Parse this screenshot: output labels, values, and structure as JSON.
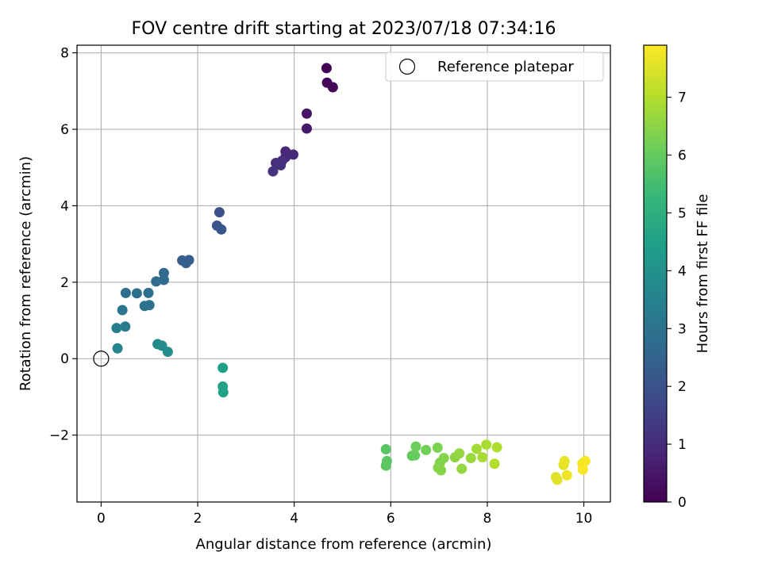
{
  "chart_data": {
    "type": "scatter",
    "title": "FOV centre drift starting at 2023/07/18 07:34:16",
    "xlabel": "Angular distance from reference (arcmin)",
    "ylabel": "Rotation from reference (arcmin)",
    "xlim": [
      -0.5,
      10.55
    ],
    "ylim": [
      -3.75,
      8.2
    ],
    "x_ticks": [
      0,
      2,
      4,
      6,
      8,
      10
    ],
    "y_ticks": [
      -2,
      0,
      2,
      4,
      6,
      8
    ],
    "grid": true,
    "legend": {
      "placement": "top-right",
      "entries": [
        {
          "label": "Reference platepar",
          "marker": "open-circle"
        }
      ]
    },
    "reference_point": {
      "x": 0,
      "y": 0
    },
    "colorbar": {
      "label": "Hours from first FF file",
      "colormap": "viridis",
      "range": [
        0,
        7.9
      ],
      "ticks": [
        0,
        1,
        2,
        3,
        4,
        5,
        6,
        7
      ]
    },
    "points": [
      {
        "x": 4.67,
        "y": 7.6,
        "t": 0.05
      },
      {
        "x": 4.68,
        "y": 7.22,
        "t": 0.12
      },
      {
        "x": 4.8,
        "y": 7.1,
        "t": 0.18
      },
      {
        "x": 4.26,
        "y": 6.41,
        "t": 0.45
      },
      {
        "x": 4.26,
        "y": 6.02,
        "t": 0.55
      },
      {
        "x": 3.82,
        "y": 5.42,
        "t": 0.85
      },
      {
        "x": 3.98,
        "y": 5.34,
        "t": 0.9
      },
      {
        "x": 3.82,
        "y": 5.27,
        "t": 0.95
      },
      {
        "x": 3.75,
        "y": 5.18,
        "t": 1.0
      },
      {
        "x": 3.62,
        "y": 5.12,
        "t": 1.05
      },
      {
        "x": 3.72,
        "y": 5.06,
        "t": 1.1
      },
      {
        "x": 3.56,
        "y": 4.9,
        "t": 1.15
      },
      {
        "x": 2.45,
        "y": 3.83,
        "t": 1.95
      },
      {
        "x": 2.4,
        "y": 3.48,
        "t": 2.05
      },
      {
        "x": 2.49,
        "y": 3.38,
        "t": 2.1
      },
      {
        "x": 1.68,
        "y": 2.57,
        "t": 2.3
      },
      {
        "x": 1.82,
        "y": 2.58,
        "t": 2.33
      },
      {
        "x": 1.76,
        "y": 2.5,
        "t": 2.36
      },
      {
        "x": 1.3,
        "y": 2.24,
        "t": 2.7
      },
      {
        "x": 1.3,
        "y": 2.06,
        "t": 2.75
      },
      {
        "x": 1.14,
        "y": 2.02,
        "t": 2.78
      },
      {
        "x": 0.51,
        "y": 1.72,
        "t": 2.85
      },
      {
        "x": 0.74,
        "y": 1.71,
        "t": 2.88
      },
      {
        "x": 0.98,
        "y": 1.72,
        "t": 2.9
      },
      {
        "x": 0.9,
        "y": 1.38,
        "t": 2.95
      },
      {
        "x": 1.0,
        "y": 1.4,
        "t": 2.98
      },
      {
        "x": 0.44,
        "y": 1.27,
        "t": 3.1
      },
      {
        "x": 0.5,
        "y": 0.84,
        "t": 3.3
      },
      {
        "x": 0.32,
        "y": 0.8,
        "t": 3.4
      },
      {
        "x": 0.34,
        "y": 0.27,
        "t": 3.6
      },
      {
        "x": 1.17,
        "y": 0.38,
        "t": 3.8
      },
      {
        "x": 1.26,
        "y": 0.34,
        "t": 3.85
      },
      {
        "x": 1.38,
        "y": 0.18,
        "t": 3.9
      },
      {
        "x": 2.52,
        "y": -0.24,
        "t": 4.45
      },
      {
        "x": 2.52,
        "y": -0.73,
        "t": 4.5
      },
      {
        "x": 2.53,
        "y": -0.88,
        "t": 4.55
      },
      {
        "x": 5.9,
        "y": -2.37,
        "t": 5.8
      },
      {
        "x": 5.92,
        "y": -2.68,
        "t": 5.85
      },
      {
        "x": 5.9,
        "y": -2.8,
        "t": 5.88
      },
      {
        "x": 6.44,
        "y": -2.54,
        "t": 6.0
      },
      {
        "x": 6.5,
        "y": -2.53,
        "t": 6.05
      },
      {
        "x": 6.52,
        "y": -2.3,
        "t": 6.1
      },
      {
        "x": 6.73,
        "y": -2.39,
        "t": 6.2
      },
      {
        "x": 6.97,
        "y": -2.33,
        "t": 6.3
      },
      {
        "x": 7.02,
        "y": -2.72,
        "t": 6.35
      },
      {
        "x": 7.1,
        "y": -2.6,
        "t": 6.4
      },
      {
        "x": 6.98,
        "y": -2.85,
        "t": 6.42
      },
      {
        "x": 7.04,
        "y": -2.92,
        "t": 6.45
      },
      {
        "x": 7.33,
        "y": -2.58,
        "t": 6.55
      },
      {
        "x": 7.42,
        "y": -2.48,
        "t": 6.6
      },
      {
        "x": 7.47,
        "y": -2.88,
        "t": 6.62
      },
      {
        "x": 7.66,
        "y": -2.6,
        "t": 6.7
      },
      {
        "x": 7.78,
        "y": -2.36,
        "t": 6.8
      },
      {
        "x": 7.9,
        "y": -2.58,
        "t": 6.85
      },
      {
        "x": 7.98,
        "y": -2.25,
        "t": 6.9
      },
      {
        "x": 8.2,
        "y": -2.32,
        "t": 6.95
      },
      {
        "x": 8.15,
        "y": -2.75,
        "t": 7.0
      },
      {
        "x": 9.42,
        "y": -3.1,
        "t": 7.5
      },
      {
        "x": 9.45,
        "y": -3.17,
        "t": 7.55
      },
      {
        "x": 9.58,
        "y": -2.78,
        "t": 7.6
      },
      {
        "x": 9.6,
        "y": -2.68,
        "t": 7.65
      },
      {
        "x": 9.65,
        "y": -3.05,
        "t": 7.7
      },
      {
        "x": 9.97,
        "y": -2.74,
        "t": 7.75
      },
      {
        "x": 10.03,
        "y": -2.68,
        "t": 7.8
      },
      {
        "x": 9.98,
        "y": -2.9,
        "t": 7.85
      }
    ]
  }
}
